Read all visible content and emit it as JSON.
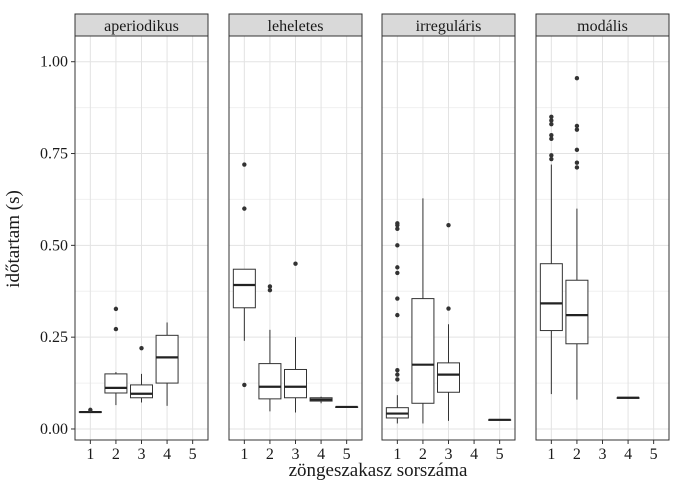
{
  "chart_data": {
    "type": "boxplot",
    "xlabel": "zöngeszakasz sorszáma",
    "ylabel": "időtartam (s)",
    "ylim": [
      -0.03,
      1.07
    ],
    "yticks": [
      0.0,
      0.25,
      0.5,
      0.75,
      1.0
    ],
    "ytick_labels": [
      "0.00",
      "0.25",
      "0.50",
      "0.75",
      "1.00"
    ],
    "xticks": [
      "1",
      "2",
      "3",
      "4",
      "5"
    ],
    "grid": true,
    "facets": [
      {
        "label": "aperiodikus",
        "boxes": [
          {
            "x": 1,
            "lower": 0.045,
            "q1": 0.045,
            "median": 0.046,
            "q3": 0.047,
            "upper": 0.048,
            "outliers": [
              0.052
            ]
          },
          {
            "x": 2,
            "lower": 0.065,
            "q1": 0.098,
            "median": 0.112,
            "q3": 0.15,
            "upper": 0.155,
            "outliers": [
              0.272,
              0.327
            ]
          },
          {
            "x": 3,
            "lower": 0.072,
            "q1": 0.085,
            "median": 0.096,
            "q3": 0.12,
            "upper": 0.15,
            "outliers": [
              0.22
            ]
          },
          {
            "x": 4,
            "lower": 0.063,
            "q1": 0.125,
            "median": 0.195,
            "q3": 0.255,
            "upper": 0.29,
            "outliers": []
          }
        ]
      },
      {
        "label": "leheletes",
        "boxes": [
          {
            "x": 1,
            "lower": 0.24,
            "q1": 0.33,
            "median": 0.392,
            "q3": 0.435,
            "upper": 0.435,
            "outliers": [
              0.12,
              0.6,
              0.72
            ]
          },
          {
            "x": 2,
            "lower": 0.048,
            "q1": 0.082,
            "median": 0.115,
            "q3": 0.178,
            "upper": 0.27,
            "outliers": [
              0.378,
              0.388
            ]
          },
          {
            "x": 3,
            "lower": 0.045,
            "q1": 0.085,
            "median": 0.115,
            "q3": 0.162,
            "upper": 0.25,
            "outliers": [
              0.45
            ]
          },
          {
            "x": 4,
            "lower": 0.07,
            "q1": 0.076,
            "median": 0.08,
            "q3": 0.085,
            "upper": 0.088,
            "outliers": []
          },
          {
            "x": 5,
            "lower": 0.06,
            "q1": 0.06,
            "median": 0.06,
            "q3": 0.06,
            "upper": 0.06,
            "outliers": []
          }
        ]
      },
      {
        "label": "irreguláris",
        "boxes": [
          {
            "x": 1,
            "lower": 0.015,
            "q1": 0.03,
            "median": 0.042,
            "q3": 0.058,
            "upper": 0.092,
            "outliers": [
              0.135,
              0.148,
              0.16,
              0.31,
              0.355,
              0.425,
              0.44,
              0.5,
              0.545,
              0.555,
              0.56
            ]
          },
          {
            "x": 2,
            "lower": 0.015,
            "q1": 0.07,
            "median": 0.175,
            "q3": 0.355,
            "upper": 0.628,
            "outliers": []
          },
          {
            "x": 3,
            "lower": 0.022,
            "q1": 0.1,
            "median": 0.148,
            "q3": 0.18,
            "upper": 0.285,
            "outliers": [
              0.328,
              0.555
            ]
          },
          {
            "x": 5,
            "lower": 0.025,
            "q1": 0.025,
            "median": 0.025,
            "q3": 0.025,
            "upper": 0.025,
            "outliers": []
          }
        ]
      },
      {
        "label": "modális",
        "boxes": [
          {
            "x": 1,
            "lower": 0.095,
            "q1": 0.268,
            "median": 0.342,
            "q3": 0.45,
            "upper": 0.72,
            "outliers": [
              0.735,
              0.745,
              0.79,
              0.8,
              0.83,
              0.84,
              0.85
            ]
          },
          {
            "x": 2,
            "lower": 0.08,
            "q1": 0.232,
            "median": 0.31,
            "q3": 0.405,
            "upper": 0.6,
            "outliers": [
              0.712,
              0.725,
              0.76,
              0.815,
              0.825,
              0.955
            ]
          },
          {
            "x": 4,
            "lower": 0.085,
            "q1": 0.085,
            "median": 0.085,
            "q3": 0.085,
            "upper": 0.085,
            "outliers": []
          }
        ]
      }
    ]
  }
}
